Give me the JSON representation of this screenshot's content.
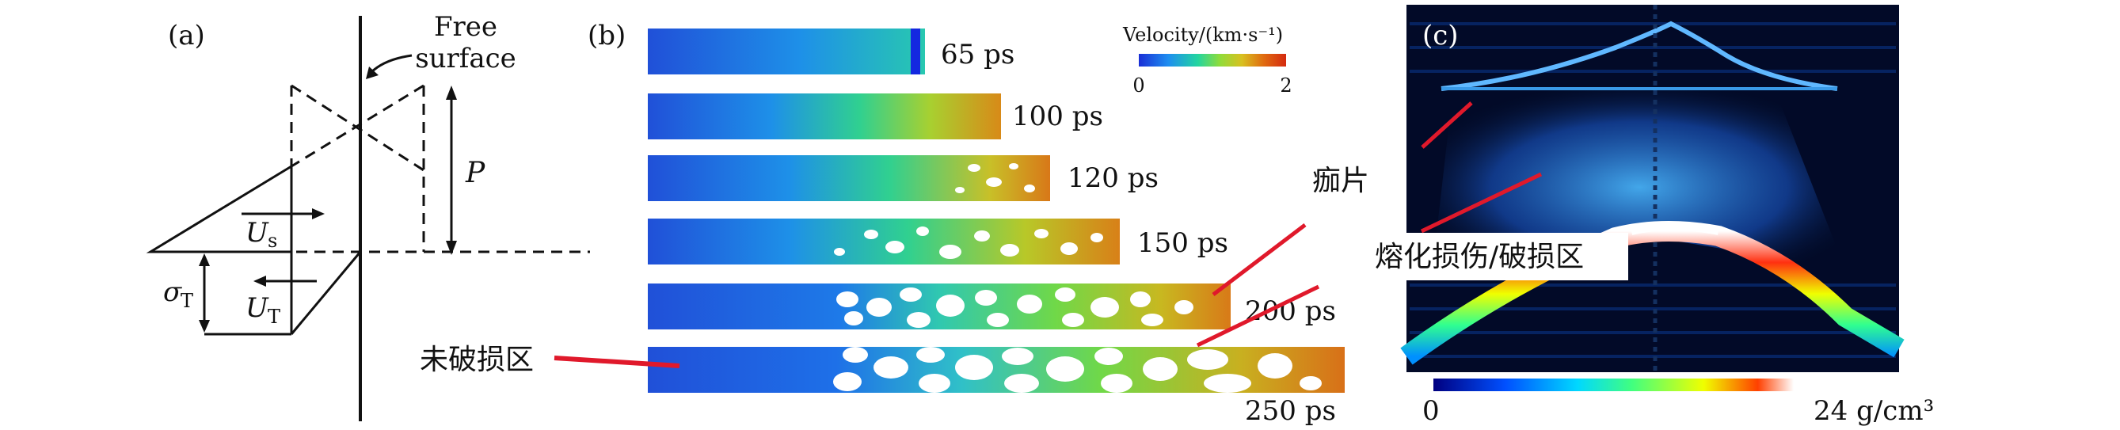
{
  "panel_a": {
    "label": "(a)",
    "free_surface_line1": "Free",
    "free_surface_line2": "surface",
    "p_label": "P",
    "us_main": "U",
    "us_sub": "s",
    "sigma_main": "σ",
    "sigma_sub": "T",
    "ut_main": "U",
    "ut_sub": "T"
  },
  "panel_b": {
    "label": "(b)",
    "colorbar_title": "Velocity/(km·s⁻¹)",
    "colorbar_min": "0",
    "colorbar_max": "2",
    "undamaged_label": "未破损区",
    "spall_label": "痂片",
    "time_labels": [
      "65 ps",
      "100 ps",
      "120 ps",
      "150 ps",
      "200 ps",
      "250 ps"
    ]
  },
  "panel_c": {
    "label": "(c)",
    "melt_damage_label": "熔化损伤/破损区",
    "colorbar_min": "0",
    "colorbar_max": "24 g/cm³"
  },
  "colors": {
    "line_red": "#e0192b",
    "velocity_gradient": [
      "#1a2fd6",
      "#1e8ef0",
      "#22d5a0",
      "#8fdc3a",
      "#d8c020",
      "#e06a10",
      "#d42a10"
    ],
    "density_gradient": [
      "#000080",
      "#0050ff",
      "#00d8ff",
      "#40ff80",
      "#f0ff00",
      "#ff4000",
      "#ffffff"
    ],
    "bar_start": "#2050d8"
  }
}
